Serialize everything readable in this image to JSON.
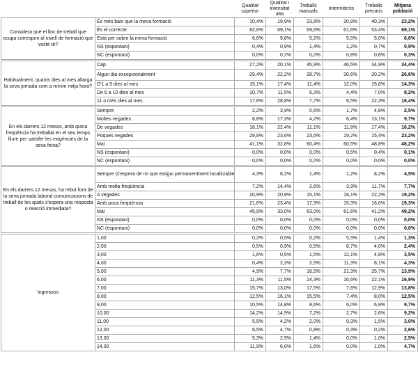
{
  "header": {
    "columns": [
      "Qualitat superior",
      "Qualitat i intensitat alta",
      "Treballs manuals",
      "Intermitents",
      "Treballs precaris",
      "Mitjana població"
    ]
  },
  "groups": [
    {
      "question": "Considera que el lloc de treball que ocupa correspon al nivell de formació que vostè té?",
      "rows": [
        {
          "label": "És més baix que la meva formació",
          "values": [
            "10,4%",
            "19,9%",
            "23,8%",
            "30,9%",
            "40,3%",
            "23,2%"
          ]
        },
        {
          "label": "És el correcte",
          "values": [
            "82,6%",
            "69,1%",
            "69,6%",
            "61,6%",
            "53,4%",
            "69,1%"
          ]
        },
        {
          "label": "Està per sobre la meva formació",
          "values": [
            "6,6%",
            "9,8%",
            "5,2%",
            "5,5%",
            "5,0%",
            "6,6%"
          ]
        },
        {
          "label": "NS (espontani)",
          "values": [
            "0,4%",
            "0,9%",
            "1,4%",
            "1,2%",
            "0,7%",
            "0,9%"
          ]
        },
        {
          "label": "NC (espontani)",
          "values": [
            "0,0%",
            "0,2%",
            "0,0%",
            "0,8%",
            "0,6%",
            "0,3%"
          ]
        }
      ]
    },
    {
      "question": "Habitualment, quants dies al mes allarga la seva jornada com a mínim mitja hora?",
      "rows": [
        {
          "label": "Cap",
          "values": [
            "27,2%",
            "20,1%",
            "45,9%",
            "46,5%",
            "34,9%",
            "34,4%"
          ]
        },
        {
          "label": "Algun dia excepcionalment",
          "values": [
            "29,4%",
            "22,2%",
            "28,7%",
            "30,6%",
            "20,2%",
            "26,6%"
          ]
        },
        {
          "label": "D'1 a 5 dies al mes",
          "values": [
            "15,1%",
            "17,4%",
            "11,4%",
            "12,0%",
            "15,6%",
            "14,3%"
          ]
        },
        {
          "label": "De 6 a 10 dies al mes",
          "values": [
            "10,7%",
            "11,5%",
            "6,3%",
            "4,4%",
            "7,0%",
            "8,2%"
          ]
        },
        {
          "label": "11 o més dies al mes",
          "values": [
            "17,6%",
            "28,8%",
            "7,7%",
            "6,5%",
            "22,3%",
            "16,4%"
          ]
        }
      ]
    },
    {
      "question": "En els darrers 12 mesos, amb quina freqüència ha treballat en el seu temps lliure per satisfer les exigències de la seva feina?",
      "rows": [
        {
          "label": "Sempre",
          "values": [
            "2,2%",
            "3,9%",
            "0,6%",
            "1,7%",
            "4,8%",
            "2,5%"
          ]
        },
        {
          "label": "Moltes vegades",
          "values": [
            "8,8%",
            "17,3%",
            "4,2%",
            "6,4%",
            "13,1%",
            "9,7%"
          ]
        },
        {
          "label": "De vegades",
          "values": [
            "18,1%",
            "22,4%",
            "11,1%",
            "11,8%",
            "17,4%",
            "16,2%"
          ]
        },
        {
          "label": "Poques vegades",
          "values": [
            "29,8%",
            "23,6%",
            "23,5%",
            "19,2%",
            "15,4%",
            "23,2%"
          ]
        },
        {
          "label": "Mai",
          "values": [
            "41,1%",
            "32,8%",
            "60,4%",
            "60,5%",
            "48,8%",
            "48,2%"
          ]
        },
        {
          "label": "NS (espontani)",
          "values": [
            "0,0%",
            "0,0%",
            "0,0%",
            "0,5%",
            "0,4%",
            "0,1%"
          ]
        },
        {
          "label": "NC (espontani)",
          "values": [
            "0,0%",
            "0,0%",
            "0,0%",
            "0,0%",
            "0,0%",
            "0,0%"
          ]
        }
      ]
    },
    {
      "question": "En els darrers 12 mesos, ha rebut fora de la seva jornada laboral comunicacions de treball de les quals s'espera una resposta o reacció immediata?",
      "rows": [
        {
          "label": "Sempre (s'espera de mi que estigui permanentment localitzable)",
          "values": [
            "4,3%",
            "8,2%",
            "1,4%",
            "1,2%",
            "8,2%",
            "4,5%"
          ]
        },
        {
          "label": "Amb molta freqüència",
          "values": [
            "7,2%",
            "14,4%",
            "2,6%",
            "3,9%",
            "11,7%",
            "7,7%"
          ]
        },
        {
          "label": "A vegades",
          "values": [
            "20,9%",
            "20,9%",
            "15,1%",
            "18,1%",
            "22,2%",
            "19,2%"
          ]
        },
        {
          "label": "Amb poca freqüència",
          "values": [
            "21,6%",
            "23,4%",
            "17,9%",
            "15,3%",
            "16,6%",
            "19,3%"
          ]
        },
        {
          "label": "Mai",
          "values": [
            "45,9%",
            "33,0%",
            "63,0%",
            "61,6%",
            "41,2%",
            "49,2%"
          ]
        },
        {
          "label": "NS (espontani)",
          "values": [
            "0,0%",
            "0,0%",
            "0,0%",
            "0,0%",
            "0,0%",
            "0,0%"
          ]
        },
        {
          "label": "NC (espontani)",
          "values": [
            "0,0%",
            "0,0%",
            "0,0%",
            "0,0%",
            "0,0%",
            "0,0%"
          ]
        }
      ]
    },
    {
      "question": "Ingressos",
      "rows": [
        {
          "label": "1,00",
          "values": [
            "0,2%",
            "0,5%",
            "0,2%",
            "5,5%",
            "1,4%",
            "1,3%"
          ]
        },
        {
          "label": "2,00",
          "values": [
            "0,5%",
            "0,9%",
            "0,5%",
            "8,7%",
            "4,0%",
            "2,4%"
          ]
        },
        {
          "label": "3,00",
          "values": [
            "1,6%",
            "0,5%",
            "1,5%",
            "12,1%",
            "4,8%",
            "3,5%"
          ]
        },
        {
          "label": "4,00",
          "values": [
            "0,4%",
            "2,3%",
            "2,5%",
            "11,3%",
            "8,1%",
            "4,3%"
          ]
        },
        {
          "label": "5,00",
          "values": [
            "4,9%",
            "7,7%",
            "16,5%",
            "21,3%",
            "25,7%",
            "13,9%"
          ]
        },
        {
          "label": "6,00",
          "values": [
            "11,3%",
            "11,5%",
            "24,3%",
            "16,6%",
            "22,1%",
            "16,9%"
          ]
        },
        {
          "label": "7,00",
          "values": [
            "15,7%",
            "13,0%",
            "17,5%",
            "7,6%",
            "12,9%",
            "13,8%"
          ]
        },
        {
          "label": "8,00",
          "values": [
            "12,5%",
            "16,1%",
            "15,5%",
            "7,4%",
            "8,0%",
            "12,5%"
          ]
        },
        {
          "label": "9,00",
          "values": [
            "10,5%",
            "14,8%",
            "8,6%",
            "6,0%",
            "6,8%",
            "9,7%"
          ]
        },
        {
          "label": "10,00",
          "values": [
            "14,2%",
            "14,9%",
            "7,2%",
            "2,7%",
            "2,6%",
            "9,2%"
          ]
        },
        {
          "label": "11,00",
          "values": [
            "5,5%",
            "4,2%",
            "2,0%",
            "0,3%",
            "1,5%",
            "3,0%"
          ]
        },
        {
          "label": "12,00",
          "values": [
            "6,5%",
            "4,7%",
            "0,8%",
            "0,3%",
            "0,2%",
            "2,6%"
          ]
        },
        {
          "label": "13,00",
          "values": [
            "5,3%",
            "2,9%",
            "1,4%",
            "0,0%",
            "1,0%",
            "2,5%"
          ]
        },
        {
          "label": "14,00",
          "values": [
            "11,9%",
            "6,0%",
            "1,6%",
            "0,0%",
            "1,0%",
            "4,7%"
          ]
        }
      ]
    }
  ]
}
